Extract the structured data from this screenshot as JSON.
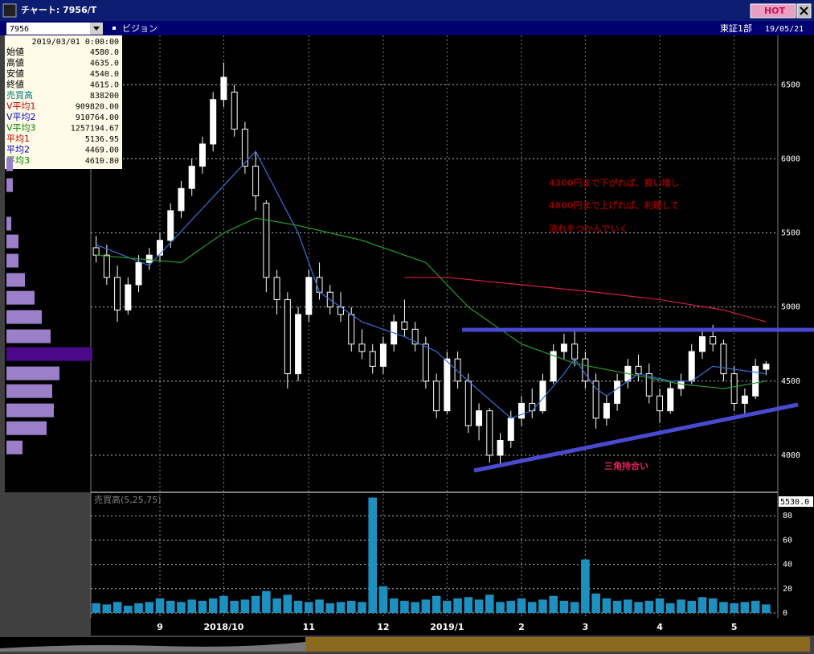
{
  "window": {
    "title": "チャート: 7956/T",
    "hot": "HOT",
    "symbol": "7956",
    "name": "ビジョン",
    "market": "東証1部",
    "date": "19/05/21"
  },
  "info_panel": {
    "date": "2019/03/01 0:00:00",
    "rows": [
      {
        "label": "始値",
        "value": "4580.0",
        "color": "#000000"
      },
      {
        "label": "高値",
        "value": "4635.0",
        "color": "#000000"
      },
      {
        "label": "安値",
        "value": "4540.0",
        "color": "#000000"
      },
      {
        "label": "終値",
        "value": "4615.0",
        "color": "#000000"
      },
      {
        "label": "売買高",
        "value": "838200",
        "color": "#008080"
      },
      {
        "label": "V平均1",
        "value": "909820.00",
        "color": "#c00000"
      },
      {
        "label": "V平均2",
        "value": "910764.00",
        "color": "#0000c0"
      },
      {
        "label": "V平均3",
        "value": "1257194.67",
        "color": "#008000"
      },
      {
        "label": "平均1",
        "value": "5136.95",
        "color": "#c00000"
      },
      {
        "label": "平均2",
        "value": "4469.00",
        "color": "#0000c0"
      },
      {
        "label": "平均3",
        "value": "4610.80",
        "color": "#008000"
      }
    ]
  },
  "annotations": {
    "lines": [
      "4300円まで下がれば、買い増し",
      "4800円まで上げれば、利確して",
      "流れをつかんでいく"
    ],
    "pattern": "三角持合い"
  },
  "chart_data": [
    {
      "type": "candlestick",
      "categories": [
        null,
        null,
        null,
        null,
        null,
        null,
        "9",
        null,
        null,
        null,
        null,
        null,
        "2018/10",
        null,
        null,
        null,
        null,
        null,
        null,
        null,
        "11",
        null,
        null,
        null,
        null,
        null,
        null,
        "12",
        null,
        null,
        null,
        null,
        null,
        "2019/1",
        null,
        null,
        null,
        null,
        null,
        null,
        "2",
        null,
        null,
        null,
        null,
        null,
        "3",
        null,
        null,
        null,
        null,
        null,
        null,
        "4",
        null,
        null,
        null,
        null,
        null,
        null,
        "5",
        null,
        null,
        null
      ],
      "open": [
        5400,
        5350,
        5200,
        4980,
        5150,
        5300,
        5350,
        5450,
        5650,
        5800,
        5950,
        6100,
        6400,
        6450,
        6200,
        5950,
        5700,
        5200,
        5050,
        4550,
        4950,
        5200,
        5100,
        5000,
        4950,
        4750,
        4700,
        4600,
        4750,
        4900,
        4850,
        4750,
        4500,
        4300,
        4650,
        4500,
        4200,
        4300,
        4000,
        4100,
        4250,
        4350,
        4300,
        4500,
        4700,
        4750,
        4650,
        4500,
        4250,
        4350,
        4500,
        4600,
        4550,
        4400,
        4300,
        4450,
        4500,
        4700,
        4800,
        4750,
        4550,
        4350,
        4400,
        4580
      ],
      "high": [
        5480,
        5420,
        5280,
        5200,
        5350,
        5400,
        5500,
        5700,
        5850,
        6000,
        6150,
        6450,
        6650,
        6500,
        6250,
        6050,
        5720,
        5250,
        5100,
        5000,
        5250,
        5300,
        5150,
        5100,
        5000,
        4850,
        4750,
        4800,
        4950,
        5050,
        4900,
        4800,
        4550,
        4700,
        4700,
        4550,
        4350,
        4320,
        4150,
        4300,
        4400,
        4450,
        4550,
        4750,
        4820,
        4850,
        4700,
        4550,
        4400,
        4550,
        4650,
        4680,
        4620,
        4450,
        4500,
        4550,
        4750,
        4850,
        4880,
        4780,
        4600,
        4450,
        4650,
        4635
      ],
      "low": [
        5300,
        5150,
        4900,
        4950,
        5100,
        5250,
        5300,
        5400,
        5600,
        5750,
        5900,
        6050,
        6350,
        6150,
        5900,
        5650,
        5100,
        4950,
        4450,
        4500,
        4900,
        5050,
        4950,
        4900,
        4700,
        4650,
        4550,
        4550,
        4700,
        4800,
        4700,
        4450,
        4250,
        4280,
        4450,
        4150,
        4100,
        3950,
        3920,
        4050,
        4200,
        4250,
        4280,
        4480,
        4650,
        4600,
        4450,
        4180,
        4200,
        4300,
        4450,
        4500,
        4350,
        4220,
        4280,
        4400,
        4480,
        4650,
        4700,
        4500,
        4300,
        4280,
        4380,
        4540
      ],
      "close": [
        5350,
        5200,
        4980,
        5150,
        5300,
        5350,
        5450,
        5650,
        5800,
        5950,
        6100,
        6400,
        6550,
        6200,
        5950,
        5750,
        5200,
        5050,
        4550,
        4950,
        5200,
        5100,
        5000,
        4950,
        4750,
        4700,
        4600,
        4750,
        4900,
        4850,
        4750,
        4500,
        4300,
        4650,
        4500,
        4200,
        4300,
        4000,
        4100,
        4250,
        4350,
        4300,
        4500,
        4700,
        4750,
        4650,
        4500,
        4250,
        4350,
        4500,
        4600,
        4550,
        4400,
        4300,
        4450,
        4500,
        4700,
        4800,
        4750,
        4550,
        4350,
        4400,
        4600,
        4615
      ],
      "up_color": "#ffffff",
      "down_color": "#000000",
      "wick_color": "#ffffff",
      "moving_averages": [
        {
          "color": "#3a6fd8",
          "x": [
            0,
            5,
            15,
            19,
            21,
            25,
            29,
            32,
            35,
            39,
            41,
            44,
            45,
            47,
            48,
            51,
            54,
            56,
            58,
            63
          ],
          "values": [
            5420,
            5280,
            6050,
            5500,
            5100,
            4900,
            4800,
            4700,
            4500,
            4250,
            4300,
            4550,
            4650,
            4450,
            4400,
            4550,
            4500,
            4500,
            4600,
            4550
          ]
        },
        {
          "color": "#2a9a2a",
          "x": [
            0,
            8,
            12,
            15,
            19,
            25,
            31,
            35,
            40,
            45,
            50,
            55,
            59,
            63
          ],
          "values": [
            5350,
            5300,
            5500,
            5600,
            5550,
            5450,
            5300,
            5000,
            4750,
            4620,
            4550,
            4480,
            4450,
            4500
          ]
        },
        {
          "color": "#d02040",
          "x": [
            29,
            33,
            40,
            47,
            53,
            59,
            63
          ],
          "values": [
            5200,
            5200,
            5150,
            5100,
            5050,
            4980,
            4900
          ]
        }
      ],
      "price_volume": {
        "levels": [
          5960,
          5820,
          5560,
          5440,
          5310,
          5180,
          5060,
          4930,
          4800,
          4680,
          4550,
          4430,
          4300,
          4180,
          4050
        ],
        "values": [
          8,
          8,
          6,
          15,
          15,
          23,
          35,
          44,
          55,
          107,
          66,
          57,
          59,
          50,
          20
        ],
        "colors": [
          "#9b7fc8",
          "#9b7fc8",
          "#9b7fc8",
          "#9b7fc8",
          "#9b7fc8",
          "#9b7fc8",
          "#9b7fc8",
          "#9b7fc8",
          "#9b7fc8",
          "#4b0a8a",
          "#9b7fc8",
          "#9b7fc8",
          "#9b7fc8",
          "#9b7fc8",
          "#9b7fc8"
        ]
      },
      "ylim": [
        3750,
        6800
      ],
      "yticks": [
        4000,
        4500,
        5000,
        5500,
        6000,
        6500
      ],
      "grid": true
    },
    {
      "type": "bar",
      "title": "売買高(5,25,75)",
      "top_label": "5530.0",
      "color": "#1e90c0",
      "values": [
        8,
        7,
        9,
        6,
        8,
        9,
        12,
        10,
        9,
        11,
        10,
        12,
        14,
        10,
        11,
        14,
        18,
        12,
        15,
        10,
        9,
        11,
        8,
        9,
        10,
        9,
        95,
        22,
        12,
        10,
        9,
        11,
        14,
        10,
        12,
        13,
        11,
        15,
        9,
        10,
        12,
        9,
        11,
        14,
        10,
        9,
        44,
        16,
        12,
        10,
        11,
        9,
        10,
        12,
        8,
        11,
        10,
        13,
        12,
        9,
        8,
        9,
        10,
        7
      ],
      "ylim": [
        -4,
        98
      ],
      "yticks": [
        0,
        20,
        40,
        60,
        80
      ],
      "grid": true
    }
  ]
}
